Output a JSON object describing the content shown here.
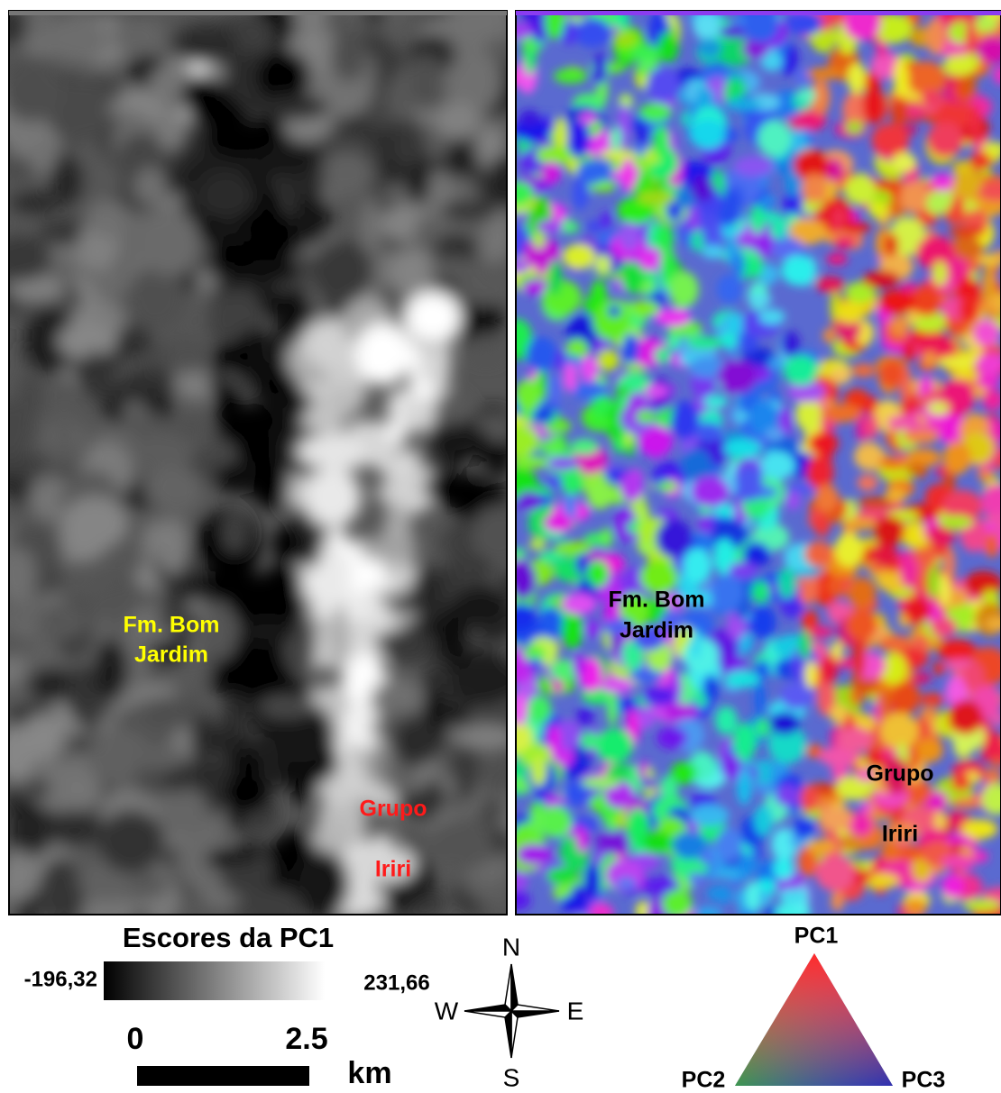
{
  "left_map": {
    "formation_label": [
      "Fm. Bom",
      "Jardim"
    ],
    "group_label": [
      "Grupo",
      "Iriri"
    ]
  },
  "right_map": {
    "formation_label": [
      "Fm. Bom",
      "Jardim"
    ],
    "group_label": [
      "Grupo",
      "Iriri"
    ]
  },
  "legend": {
    "title": "Escores da PC1",
    "min": "-196,32",
    "max": "231,66"
  },
  "scale_bar": {
    "start": "0",
    "end": "2.5",
    "unit": "km"
  },
  "compass": {
    "north": "N",
    "west": "W",
    "east": "E",
    "south": "S"
  },
  "ternary": {
    "top": "PC1",
    "left": "PC2",
    "right": "PC3"
  }
}
